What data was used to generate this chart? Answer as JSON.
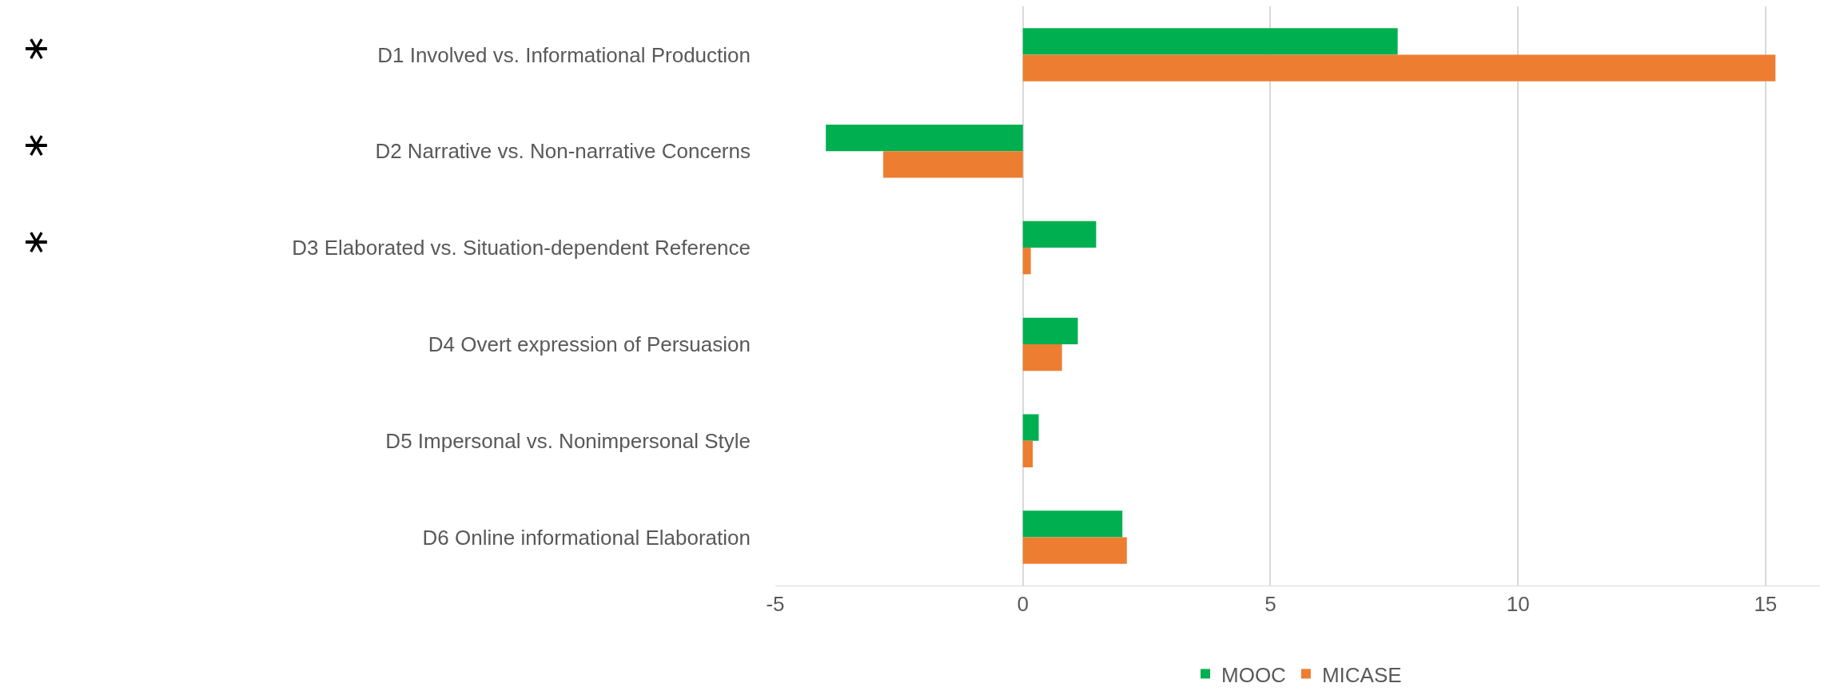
{
  "chart_data": {
    "type": "bar",
    "orientation": "horizontal",
    "categories": [
      "D1 Involved vs. Informational Production",
      "D2 Narrative vs. Non-narrative Concerns",
      "D3 Elaborated vs. Situation-dependent Reference",
      "D4 Overt expression of Persuasion",
      "D5 Impersonal vs. Nonimpersonal Style",
      "D6 Online informational Elaboration"
    ],
    "series": [
      {
        "name": "MOOC",
        "color": "#00b050",
        "values": [
          7.57,
          -3.98,
          1.48,
          1.11,
          0.32,
          2.01
        ]
      },
      {
        "name": "MICASE",
        "color": "#ed7d31",
        "values": [
          15.2,
          -2.82,
          0.16,
          0.79,
          0.2,
          2.1
        ]
      }
    ],
    "xlim": [
      -5,
      16.1
    ],
    "xticks": [
      -5,
      0,
      5,
      10,
      15
    ],
    "grid": true,
    "legend": "bottom",
    "annotations": [
      "⚹",
      "⚹",
      "⚹"
    ]
  }
}
